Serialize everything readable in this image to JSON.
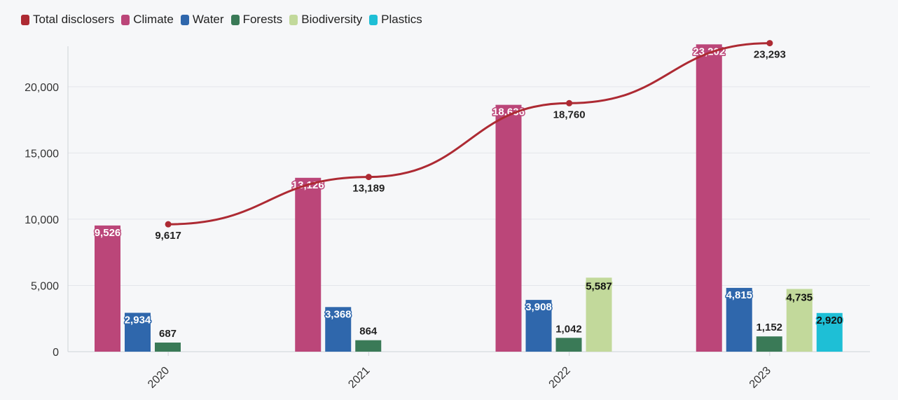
{
  "chart_data": {
    "type": "bar",
    "categories": [
      "2020",
      "2021",
      "2022",
      "2023"
    ],
    "series": [
      {
        "name": "Climate",
        "color": "#bb4679",
        "values": [
          9526,
          13126,
          18636,
          23202
        ]
      },
      {
        "name": "Water",
        "color": "#2f67ac",
        "values": [
          2934,
          3368,
          3908,
          4815
        ]
      },
      {
        "name": "Forests",
        "color": "#3a7a57",
        "values": [
          687,
          864,
          1042,
          1152
        ]
      },
      {
        "name": "Biodiversity",
        "color": "#c2d99b",
        "values": [
          null,
          null,
          5587,
          4735
        ]
      },
      {
        "name": "Plastics",
        "color": "#1ebfd6",
        "values": [
          null,
          null,
          null,
          2920
        ]
      }
    ],
    "line_series": {
      "name": "Total disclosers",
      "color": "#ad2a33",
      "values": [
        9617,
        13189,
        18760,
        23293
      ]
    },
    "legend_order": [
      "Total disclosers",
      "Climate",
      "Water",
      "Forests",
      "Biodiversity",
      "Plastics"
    ],
    "y_ticks": [
      0,
      5000,
      10000,
      15000,
      20000
    ],
    "ylim": [
      0,
      23800
    ],
    "legend_position": "top-left",
    "grid": true,
    "title": "",
    "xlabel": "",
    "ylabel": ""
  }
}
